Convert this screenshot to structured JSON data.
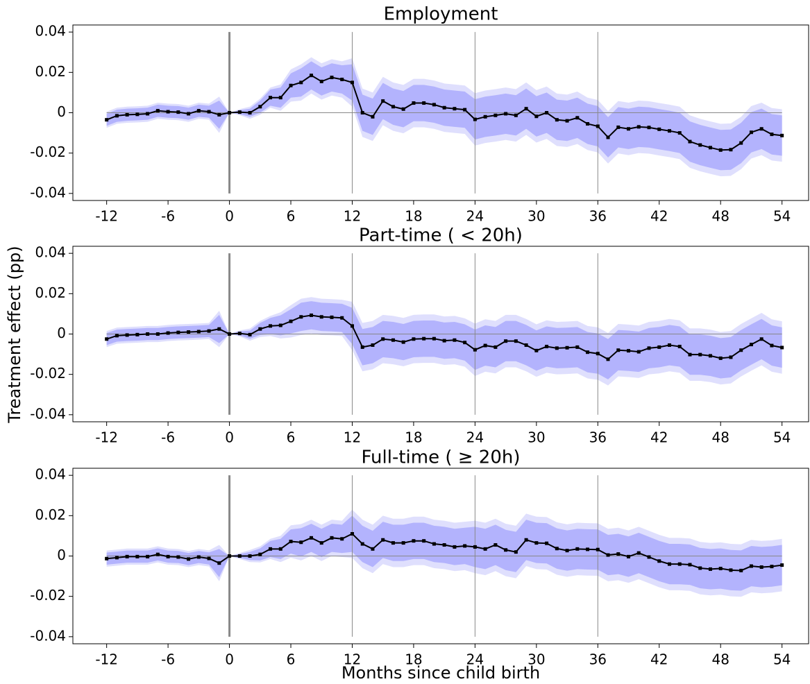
{
  "chart_data": [
    {
      "type": "line",
      "title": "Employment",
      "x": [
        -12,
        -11,
        -10,
        -9,
        -8,
        -7,
        -6,
        -5,
        -4,
        -3,
        -2,
        -1,
        0,
        1,
        2,
        3,
        4,
        5,
        6,
        7,
        8,
        9,
        10,
        11,
        12,
        13,
        14,
        15,
        16,
        17,
        18,
        19,
        20,
        21,
        22,
        23,
        24,
        25,
        26,
        27,
        28,
        29,
        30,
        31,
        32,
        33,
        34,
        35,
        36,
        37,
        38,
        39,
        40,
        41,
        42,
        43,
        44,
        45,
        46,
        47,
        48,
        49,
        50,
        51,
        52,
        53,
        54
      ],
      "series": [
        {
          "color": "#000000",
          "band_colors": [
            "#dfdffd",
            "#b3b3fd"
          ],
          "values": [
            -0.0035,
            -0.0015,
            -0.001,
            -0.0008,
            -0.0005,
            0.001,
            0.0005,
            0.0003,
            -0.0005,
            0.001,
            0.0005,
            -0.001,
            0,
            0.0003,
            0,
            0.003,
            0.0075,
            0.0075,
            0.0135,
            0.015,
            0.0185,
            0.0155,
            0.0175,
            0.0165,
            0.015,
            0,
            -0.002,
            0.0058,
            0.003,
            0.0018,
            0.0048,
            0.0048,
            0.004,
            0.0025,
            0.002,
            0.0015,
            -0.0033,
            -0.002,
            -0.0013,
            -0.0005,
            -0.0013,
            0.002,
            -0.0018,
            0,
            -0.0035,
            -0.004,
            -0.0025,
            -0.0055,
            -0.0067,
            -0.0122,
            -0.0072,
            -0.008,
            -0.007,
            -0.0073,
            -0.0082,
            -0.009,
            -0.01,
            -0.0143,
            -0.016,
            -0.0173,
            -0.0185,
            -0.0183,
            -0.015,
            -0.0097,
            -0.008,
            -0.0107,
            -0.0113
          ],
          "inner_err": [
            0.003,
            0.003,
            0.003,
            0.003,
            0.003,
            0.003,
            0.003,
            0.003,
            0.003,
            0.003,
            0.003,
            0.007,
            0,
            0.001,
            0.002,
            0.003,
            0.004,
            0.005,
            0.006,
            0.007,
            0.007,
            0.007,
            0.007,
            0.007,
            0.009,
            0.009,
            0.009,
            0.009,
            0.009,
            0.009,
            0.009,
            0.009,
            0.009,
            0.009,
            0.009,
            0.009,
            0.01,
            0.01,
            0.01,
            0.01,
            0.01,
            0.01,
            0.01,
            0.01,
            0.01,
            0.01,
            0.01,
            0.01,
            0.01,
            0.01,
            0.01,
            0.01,
            0.01,
            0.01,
            0.01,
            0.01,
            0.01,
            0.01,
            0.01,
            0.01,
            0.01,
            0.01,
            0.01,
            0.01,
            0.01,
            0.01,
            0.01
          ],
          "outer_err": [
            0.004,
            0.004,
            0.004,
            0.004,
            0.004,
            0.004,
            0.004,
            0.004,
            0.004,
            0.004,
            0.004,
            0.009,
            0,
            0.0015,
            0.003,
            0.004,
            0.005,
            0.0065,
            0.008,
            0.009,
            0.009,
            0.009,
            0.009,
            0.009,
            0.012,
            0.012,
            0.012,
            0.012,
            0.012,
            0.012,
            0.012,
            0.012,
            0.012,
            0.012,
            0.012,
            0.012,
            0.013,
            0.013,
            0.013,
            0.013,
            0.013,
            0.013,
            0.013,
            0.013,
            0.013,
            0.013,
            0.013,
            0.013,
            0.013,
            0.013,
            0.013,
            0.013,
            0.013,
            0.013,
            0.013,
            0.013,
            0.013,
            0.013,
            0.013,
            0.013,
            0.013,
            0.013,
            0.013,
            0.013,
            0.013,
            0.013,
            0.013
          ]
        }
      ],
      "vlines": [
        0,
        12,
        24,
        36
      ],
      "hline": 0,
      "xlim": [
        -15.3,
        56.6
      ],
      "xticks": [
        -12,
        -6,
        0,
        6,
        12,
        18,
        24,
        30,
        36,
        42,
        48,
        54
      ],
      "ylim": [
        -0.0435,
        0.0435
      ],
      "yticks": [
        0.04,
        0.02,
        0,
        -0.02,
        -0.04
      ]
    },
    {
      "type": "line",
      "title": "Part-time ( < 20h)",
      "y_label": "Treatment effect (pp)",
      "x": [
        -12,
        -11,
        -10,
        -9,
        -8,
        -7,
        -6,
        -5,
        -4,
        -3,
        -2,
        -1,
        0,
        1,
        2,
        3,
        4,
        5,
        6,
        7,
        8,
        9,
        10,
        11,
        12,
        13,
        14,
        15,
        16,
        17,
        18,
        19,
        20,
        21,
        22,
        23,
        24,
        25,
        26,
        27,
        28,
        29,
        30,
        31,
        32,
        33,
        34,
        35,
        36,
        37,
        38,
        39,
        40,
        41,
        42,
        43,
        44,
        45,
        46,
        47,
        48,
        49,
        50,
        51,
        52,
        53,
        54
      ],
      "series": [
        {
          "color": "#000000",
          "band_colors": [
            "#dfdffd",
            "#b3b3fd"
          ],
          "values": [
            -0.0025,
            -0.0008,
            -0.0005,
            -0.0003,
            0,
            0,
            0.0005,
            0.0008,
            0.001,
            0.0012,
            0.0015,
            0.0025,
            0,
            0.0003,
            -0.0003,
            0.0025,
            0.004,
            0.0043,
            0.0063,
            0.0085,
            0.0093,
            0.0085,
            0.0083,
            0.008,
            0.004,
            -0.0065,
            -0.0055,
            -0.0025,
            -0.003,
            -0.004,
            -0.0025,
            -0.0023,
            -0.0023,
            -0.0033,
            -0.003,
            -0.0042,
            -0.0078,
            -0.0057,
            -0.0065,
            -0.0035,
            -0.0035,
            -0.0055,
            -0.0082,
            -0.0062,
            -0.007,
            -0.0068,
            -0.0065,
            -0.009,
            -0.0097,
            -0.0125,
            -0.008,
            -0.0083,
            -0.0088,
            -0.007,
            -0.0065,
            -0.0055,
            -0.0062,
            -0.0102,
            -0.0102,
            -0.0108,
            -0.012,
            -0.0115,
            -0.008,
            -0.0052,
            -0.0025,
            -0.0057,
            -0.0067
          ],
          "inner_err": [
            0.003,
            0.003,
            0.003,
            0.003,
            0.003,
            0.003,
            0.003,
            0.003,
            0.003,
            0.003,
            0.003,
            0.007,
            0,
            0.001,
            0.002,
            0.003,
            0.004,
            0.005,
            0.006,
            0.007,
            0.007,
            0.007,
            0.007,
            0.007,
            0.009,
            0.009,
            0.009,
            0.009,
            0.009,
            0.009,
            0.009,
            0.009,
            0.009,
            0.009,
            0.009,
            0.009,
            0.01,
            0.01,
            0.01,
            0.01,
            0.01,
            0.01,
            0.01,
            0.01,
            0.01,
            0.01,
            0.01,
            0.01,
            0.01,
            0.01,
            0.01,
            0.01,
            0.01,
            0.01,
            0.01,
            0.01,
            0.01,
            0.01,
            0.01,
            0.01,
            0.01,
            0.01,
            0.01,
            0.01,
            0.01,
            0.01,
            0.01
          ],
          "outer_err": [
            0.004,
            0.004,
            0.004,
            0.004,
            0.004,
            0.004,
            0.004,
            0.004,
            0.004,
            0.004,
            0.004,
            0.009,
            0,
            0.0015,
            0.003,
            0.004,
            0.005,
            0.0065,
            0.008,
            0.009,
            0.009,
            0.009,
            0.009,
            0.009,
            0.012,
            0.012,
            0.012,
            0.012,
            0.012,
            0.012,
            0.012,
            0.012,
            0.012,
            0.012,
            0.012,
            0.012,
            0.013,
            0.013,
            0.013,
            0.013,
            0.013,
            0.013,
            0.013,
            0.013,
            0.013,
            0.013,
            0.013,
            0.013,
            0.013,
            0.013,
            0.013,
            0.013,
            0.013,
            0.013,
            0.013,
            0.013,
            0.013,
            0.013,
            0.013,
            0.013,
            0.013,
            0.013,
            0.013,
            0.013,
            0.013,
            0.013,
            0.013
          ]
        }
      ],
      "vlines": [
        0,
        12,
        24,
        36
      ],
      "hline": 0,
      "xlim": [
        -15.3,
        56.6
      ],
      "xticks": [
        -12,
        -6,
        0,
        6,
        12,
        18,
        24,
        30,
        36,
        42,
        48,
        54
      ],
      "ylim": [
        -0.0435,
        0.0435
      ],
      "yticks": [
        0.04,
        0.02,
        0,
        -0.02,
        -0.04
      ]
    },
    {
      "type": "line",
      "title": "Full-time ( ≥ 20h)",
      "x_label": "Months since child birth",
      "x": [
        -12,
        -11,
        -10,
        -9,
        -8,
        -7,
        -6,
        -5,
        -4,
        -3,
        -2,
        -1,
        0,
        1,
        2,
        3,
        4,
        5,
        6,
        7,
        8,
        9,
        10,
        11,
        12,
        13,
        14,
        15,
        16,
        17,
        18,
        19,
        20,
        21,
        22,
        23,
        24,
        25,
        26,
        27,
        28,
        29,
        30,
        31,
        32,
        33,
        34,
        35,
        36,
        37,
        38,
        39,
        40,
        41,
        42,
        43,
        44,
        45,
        46,
        47,
        48,
        49,
        50,
        51,
        52,
        53,
        54
      ],
      "series": [
        {
          "color": "#000000",
          "band_colors": [
            "#dfdffd",
            "#b3b3fd"
          ],
          "values": [
            -0.0013,
            -0.0008,
            -0.0003,
            -0.0003,
            -0.0003,
            0.0008,
            -0.0003,
            -0.0005,
            -0.0015,
            -0.0005,
            -0.0012,
            -0.0035,
            0,
            0,
            0,
            0.0008,
            0.0035,
            0.0035,
            0.0072,
            0.0068,
            0.009,
            0.0065,
            0.009,
            0.0085,
            0.011,
            0.006,
            0.0035,
            0.008,
            0.0065,
            0.0065,
            0.0075,
            0.0075,
            0.006,
            0.0055,
            0.0045,
            0.005,
            0.0045,
            0.0035,
            0.0055,
            0.003,
            0.002,
            0.008,
            0.0065,
            0.0063,
            0.0037,
            0.0027,
            0.0035,
            0.0033,
            0.0032,
            0.0005,
            0.001,
            -0.0003,
            0.0015,
            -0.0005,
            -0.0025,
            -0.004,
            -0.004,
            -0.0043,
            -0.006,
            -0.0065,
            -0.0062,
            -0.007,
            -0.0072,
            -0.005,
            -0.0055,
            -0.0052,
            -0.0045
          ],
          "inner_err": [
            0.003,
            0.003,
            0.003,
            0.003,
            0.003,
            0.003,
            0.003,
            0.003,
            0.003,
            0.003,
            0.003,
            0.007,
            0,
            0.001,
            0.002,
            0.003,
            0.004,
            0.005,
            0.006,
            0.007,
            0.007,
            0.007,
            0.007,
            0.007,
            0.009,
            0.009,
            0.009,
            0.009,
            0.009,
            0.009,
            0.009,
            0.009,
            0.009,
            0.009,
            0.009,
            0.009,
            0.01,
            0.01,
            0.01,
            0.01,
            0.01,
            0.01,
            0.01,
            0.01,
            0.01,
            0.01,
            0.01,
            0.01,
            0.01,
            0.01,
            0.01,
            0.01,
            0.01,
            0.01,
            0.01,
            0.01,
            0.01,
            0.01,
            0.01,
            0.01,
            0.01,
            0.01,
            0.01,
            0.01,
            0.01,
            0.01,
            0.01
          ],
          "outer_err": [
            0.004,
            0.004,
            0.004,
            0.004,
            0.004,
            0.004,
            0.004,
            0.004,
            0.004,
            0.004,
            0.004,
            0.009,
            0,
            0.0015,
            0.003,
            0.004,
            0.005,
            0.0065,
            0.008,
            0.009,
            0.009,
            0.009,
            0.009,
            0.009,
            0.012,
            0.012,
            0.012,
            0.012,
            0.012,
            0.012,
            0.012,
            0.012,
            0.012,
            0.012,
            0.012,
            0.012,
            0.013,
            0.013,
            0.013,
            0.013,
            0.013,
            0.013,
            0.013,
            0.013,
            0.013,
            0.013,
            0.013,
            0.013,
            0.013,
            0.013,
            0.013,
            0.013,
            0.013,
            0.013,
            0.013,
            0.013,
            0.013,
            0.013,
            0.013,
            0.013,
            0.013,
            0.013,
            0.013,
            0.013,
            0.013,
            0.013,
            0.013
          ]
        }
      ],
      "vlines": [
        0,
        12,
        24,
        36
      ],
      "hline": 0,
      "xlim": [
        -15.3,
        56.6
      ],
      "xticks": [
        -12,
        -6,
        0,
        6,
        12,
        18,
        24,
        30,
        36,
        42,
        48,
        54
      ],
      "ylim": [
        -0.0435,
        0.0435
      ],
      "yticks": [
        0.04,
        0.02,
        0,
        -0.02,
        -0.04
      ]
    }
  ]
}
